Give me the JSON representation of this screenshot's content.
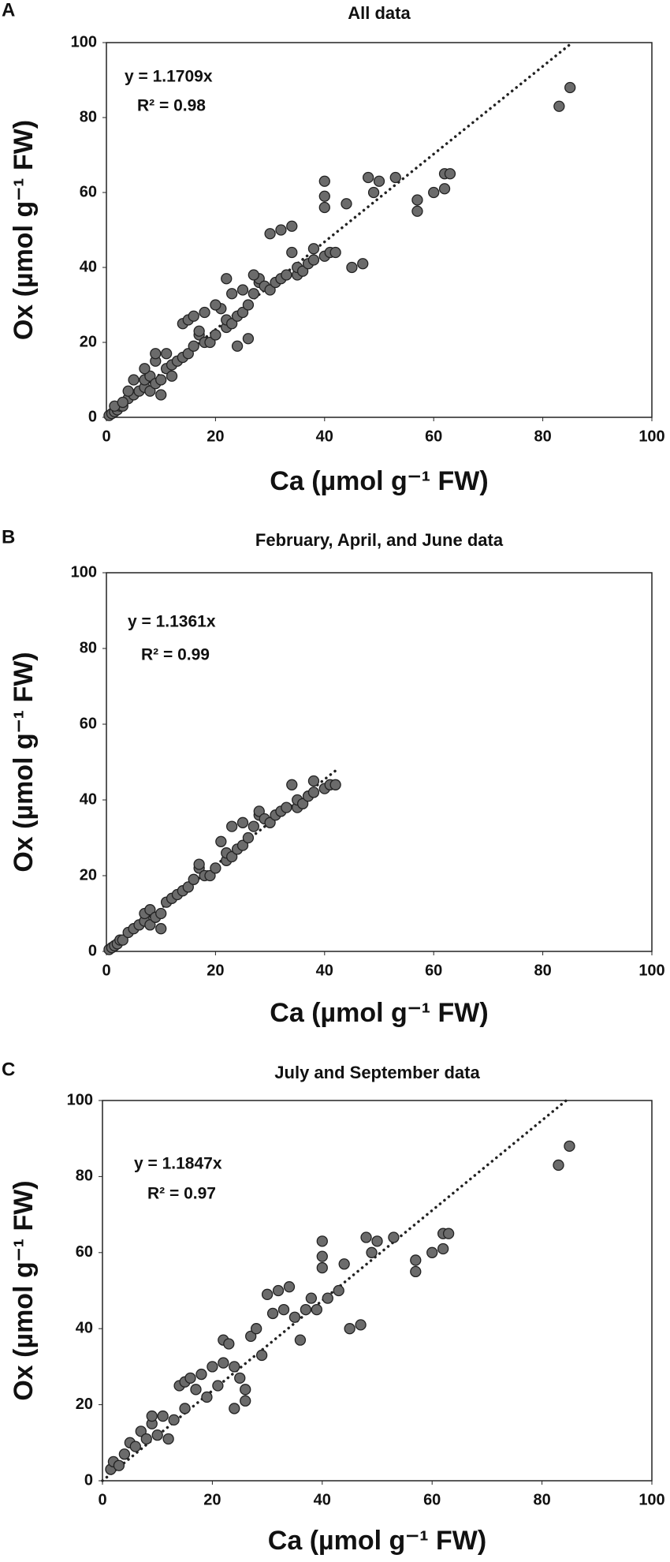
{
  "chart_data": [
    {
      "type": "scatter",
      "panel": "A",
      "title": "All data",
      "xlabel": "Ca (µmol g⁻¹ FW)",
      "ylabel": "Ox (µmol g⁻¹ FW)",
      "trendline": {
        "slope": 1.1709,
        "label": "y = 1.1709x"
      },
      "r2_label": "R² = 0.98",
      "xlim": [
        0,
        100
      ],
      "ylim": [
        0,
        100
      ],
      "xticks": [
        0,
        20,
        40,
        60,
        80,
        100
      ],
      "yticks": [
        0,
        20,
        40,
        60,
        80,
        100
      ],
      "color": "#6b6b6b",
      "x": [
        0.5,
        1,
        1.5,
        2,
        2.5,
        3,
        4,
        5,
        6,
        7,
        7,
        8,
        8,
        9,
        10,
        10,
        11,
        12,
        13,
        14,
        15,
        16,
        17,
        17,
        18,
        19,
        20,
        21,
        22,
        22,
        23,
        23,
        24,
        25,
        25,
        26,
        27,
        28,
        28,
        29,
        30,
        31,
        32,
        33,
        34,
        35,
        35,
        36,
        37,
        38,
        38,
        40,
        41,
        42,
        1.5,
        3,
        4,
        5,
        7,
        9,
        9,
        11,
        12,
        14,
        15,
        16,
        18,
        20,
        22,
        24,
        26,
        27,
        30,
        32,
        34,
        40,
        40,
        40,
        44,
        45,
        47,
        48,
        49,
        50,
        53,
        57,
        57,
        60,
        62,
        62,
        63,
        83,
        85
      ],
      "y": [
        0.5,
        1,
        1.5,
        2,
        3,
        3,
        5,
        6,
        7,
        8,
        10,
        7,
        11,
        9,
        6,
        10,
        13,
        14,
        15,
        16,
        17,
        19,
        22,
        23,
        20,
        20,
        22,
        29,
        24,
        26,
        25,
        33,
        27,
        34,
        28,
        30,
        33,
        36,
        37,
        35,
        34,
        36,
        37,
        38,
        44,
        38,
        40,
        39,
        41,
        42,
        45,
        43,
        44,
        44,
        3,
        4,
        7,
        10,
        13,
        15,
        17,
        17,
        11,
        25,
        26,
        27,
        28,
        30,
        37,
        19,
        21,
        38,
        49,
        50,
        51,
        63,
        59,
        56,
        57,
        40,
        41,
        64,
        60,
        63,
        64,
        58,
        55,
        60,
        65,
        61,
        65,
        83,
        88
      ]
    },
    {
      "type": "scatter",
      "panel": "B",
      "title": "February, April, and June data",
      "xlabel": "Ca (µmol g⁻¹ FW)",
      "ylabel": "Ox (µmol g⁻¹ FW)",
      "trendline": {
        "slope": 1.1361,
        "label": "y = 1.1361x"
      },
      "r2_label": "R² = 0.99",
      "xlim": [
        0,
        100
      ],
      "ylim": [
        0,
        100
      ],
      "xticks": [
        0,
        20,
        40,
        60,
        80,
        100
      ],
      "yticks": [
        0,
        20,
        40,
        60,
        80,
        100
      ],
      "color": "#6b6b6b",
      "x": [
        0.5,
        1,
        1.5,
        2,
        2.5,
        3,
        4,
        5,
        6,
        7,
        7,
        8,
        8,
        9,
        10,
        10,
        11,
        12,
        13,
        14,
        15,
        16,
        17,
        17,
        18,
        19,
        20,
        21,
        22,
        22,
        23,
        23,
        24,
        25,
        25,
        26,
        27,
        28,
        28,
        29,
        30,
        31,
        32,
        33,
        34,
        35,
        35,
        36,
        37,
        38,
        38,
        40,
        41,
        42
      ],
      "y": [
        0.5,
        1,
        1.5,
        2,
        3,
        3,
        5,
        6,
        7,
        8,
        10,
        7,
        11,
        9,
        6,
        10,
        13,
        14,
        15,
        16,
        17,
        19,
        22,
        23,
        20,
        20,
        22,
        29,
        24,
        26,
        25,
        33,
        27,
        34,
        28,
        30,
        33,
        36,
        37,
        35,
        34,
        36,
        37,
        38,
        44,
        38,
        40,
        39,
        41,
        42,
        45,
        43,
        44,
        44
      ]
    },
    {
      "type": "scatter",
      "panel": "C",
      "title": "July  and September data",
      "xlabel": "Ca (µmol g⁻¹ FW)",
      "ylabel": "Ox (µmol g⁻¹ FW)",
      "trendline": {
        "slope": 1.1847,
        "label": "y = 1.1847x"
      },
      "r2_label": "R² = 0.97",
      "xlim": [
        0,
        100
      ],
      "ylim": [
        0,
        100
      ],
      "xticks": [
        0,
        20,
        40,
        60,
        80,
        100
      ],
      "yticks": [
        0,
        20,
        40,
        60,
        80,
        100
      ],
      "color": "#6b6b6b",
      "x": [
        1.5,
        2,
        3,
        4,
        5,
        6,
        7,
        8,
        9,
        9,
        10,
        11,
        12,
        13,
        14,
        15,
        15,
        16,
        17,
        18,
        19,
        20,
        21,
        22,
        22,
        23,
        24,
        24,
        25,
        26,
        26,
        27,
        28,
        29,
        30,
        31,
        32,
        33,
        34,
        35,
        36,
        37,
        38,
        39,
        40,
        40,
        40,
        41,
        43,
        44,
        45,
        47,
        48,
        49,
        50,
        53,
        57,
        57,
        60,
        62,
        62,
        63,
        83,
        85
      ],
      "y": [
        3,
        5,
        4,
        7,
        10,
        9,
        13,
        11,
        15,
        17,
        12,
        17,
        11,
        16,
        25,
        26,
        19,
        27,
        24,
        28,
        22,
        30,
        25,
        37,
        31,
        36,
        19,
        30,
        27,
        24,
        21,
        38,
        40,
        33,
        49,
        44,
        50,
        45,
        51,
        43,
        37,
        45,
        48,
        45,
        63,
        59,
        56,
        48,
        50,
        57,
        40,
        41,
        64,
        60,
        63,
        64,
        58,
        55,
        60,
        65,
        61,
        65,
        83,
        88
      ]
    }
  ]
}
